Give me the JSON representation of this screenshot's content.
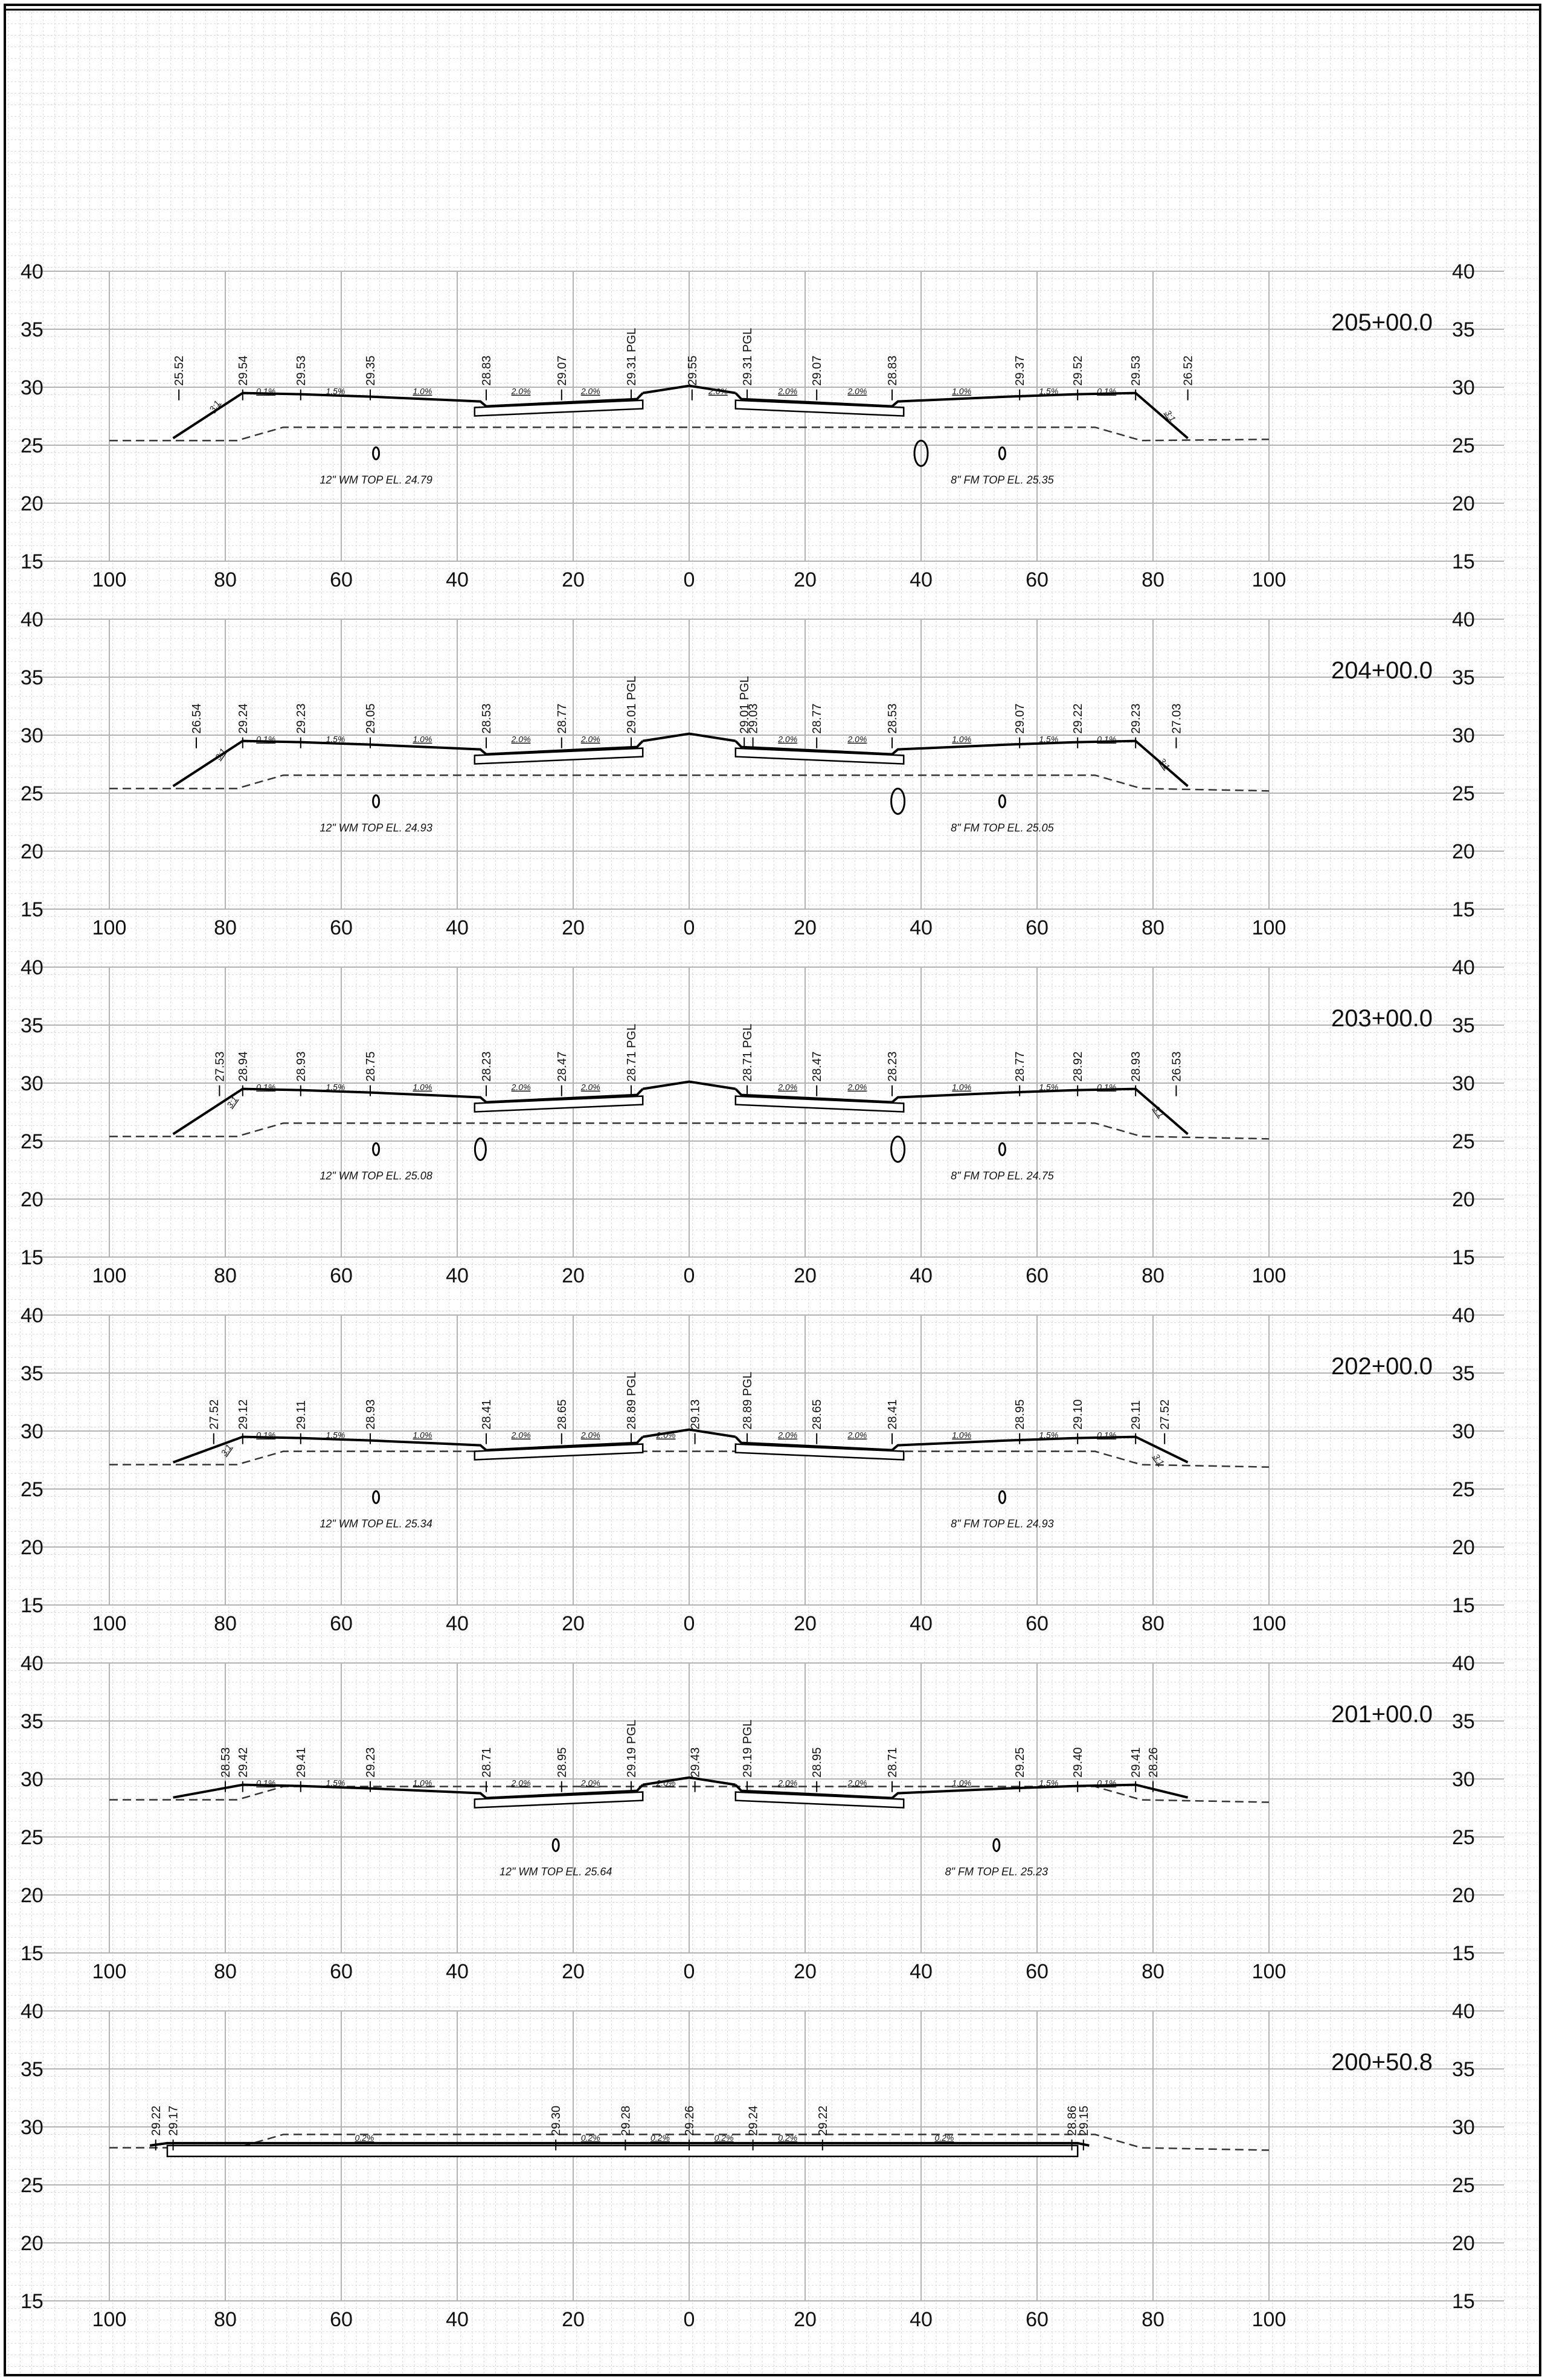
{
  "sheet": {
    "offset_ticks": [
      100,
      80,
      60,
      40,
      20,
      0,
      20,
      40,
      60,
      80,
      100
    ],
    "elevation_ticks": [
      40,
      35,
      30,
      25,
      20,
      15
    ]
  },
  "chart_data": [
    {
      "type": "diagram",
      "station": "205+00.0",
      "elevations": [
        {
          "x": -88,
          "label": "25.52"
        },
        {
          "x": -77,
          "label": "29.54"
        },
        {
          "x": -67,
          "label": "29.53"
        },
        {
          "x": -55,
          "label": "29.35"
        },
        {
          "x": -35,
          "label": "28.83"
        },
        {
          "x": -22,
          "label": "29.07"
        },
        {
          "x": -10,
          "label": "29.31 PGL"
        },
        {
          "x": 0.5,
          "label": "29.55"
        },
        {
          "x": 10,
          "label": "29.31 PGL"
        },
        {
          "x": 22,
          "label": "29.07"
        },
        {
          "x": 35,
          "label": "28.83"
        },
        {
          "x": 57,
          "label": "29.37"
        },
        {
          "x": 67,
          "label": "29.52"
        },
        {
          "x": 77,
          "label": "29.53"
        },
        {
          "x": 86,
          "label": "26.52"
        }
      ],
      "slopes": [
        {
          "x": -73,
          "label": "0.1%"
        },
        {
          "x": -61,
          "label": "1.5%"
        },
        {
          "x": -46,
          "label": "1.0%"
        },
        {
          "x": -29,
          "label": "2.0%"
        },
        {
          "x": -17,
          "label": "2.0%"
        },
        {
          "x": 5,
          "label": "2.0%"
        },
        {
          "x": 17,
          "label": "2.0%"
        },
        {
          "x": 29,
          "label": "2.0%"
        },
        {
          "x": 47,
          "label": "1.0%"
        },
        {
          "x": 62,
          "label": "1.5%"
        },
        {
          "x": 72,
          "label": "0.1%"
        }
      ],
      "side_slopes": [
        {
          "x": -82,
          "label": "3:1"
        },
        {
          "x": 82,
          "label": "3:1"
        }
      ],
      "notes": [
        {
          "x": -54,
          "label": "12\" WM TOP EL. 24.79"
        },
        {
          "x": 54,
          "label": "8\" FM TOP EL. 25.35"
        }
      ]
    },
    {
      "type": "diagram",
      "station": "204+00.0",
      "elevations": [
        {
          "x": -85,
          "label": "26.54"
        },
        {
          "x": -77,
          "label": "29.24"
        },
        {
          "x": -67,
          "label": "29.23"
        },
        {
          "x": -55,
          "label": "29.05"
        },
        {
          "x": -35,
          "label": "28.53"
        },
        {
          "x": -22,
          "label": "28.77"
        },
        {
          "x": -10,
          "label": "29.01 PGL"
        },
        {
          "x": 9.5,
          "label": "29.01 PGL"
        },
        {
          "x": 11,
          "label": "29.03"
        },
        {
          "x": 22,
          "label": "28.77"
        },
        {
          "x": 35,
          "label": "28.53"
        },
        {
          "x": 57,
          "label": "29.07"
        },
        {
          "x": 67,
          "label": "29.22"
        },
        {
          "x": 77,
          "label": "29.23"
        },
        {
          "x": 84,
          "label": "27.03"
        }
      ],
      "slopes": [
        {
          "x": -73,
          "label": "0.1%"
        },
        {
          "x": -61,
          "label": "1.5%"
        },
        {
          "x": -46,
          "label": "1.0%"
        },
        {
          "x": -29,
          "label": "2.0%"
        },
        {
          "x": -17,
          "label": "2.0%"
        },
        {
          "x": 17,
          "label": "2.0%"
        },
        {
          "x": 29,
          "label": "2.0%"
        },
        {
          "x": 47,
          "label": "1.0%"
        },
        {
          "x": 62,
          "label": "1.5%"
        },
        {
          "x": 72,
          "label": "0.1%"
        }
      ],
      "side_slopes": [
        {
          "x": -81,
          "label": "3:1"
        },
        {
          "x": 81,
          "label": "3:1"
        }
      ],
      "notes": [
        {
          "x": -54,
          "label": "12\" WM TOP EL. 24.93"
        },
        {
          "x": 54,
          "label": "8\" FM TOP EL. 25.05"
        }
      ]
    },
    {
      "type": "diagram",
      "station": "203+00.0",
      "elevations": [
        {
          "x": -81,
          "label": "27.53"
        },
        {
          "x": -77,
          "label": "28.94"
        },
        {
          "x": -67,
          "label": "28.93"
        },
        {
          "x": -55,
          "label": "28.75"
        },
        {
          "x": -35,
          "label": "28.23"
        },
        {
          "x": -22,
          "label": "28.47"
        },
        {
          "x": -10,
          "label": "28.71 PGL"
        },
        {
          "x": 10,
          "label": "28.71 PGL"
        },
        {
          "x": 22,
          "label": "28.47"
        },
        {
          "x": 35,
          "label": "28.23"
        },
        {
          "x": 57,
          "label": "28.77"
        },
        {
          "x": 67,
          "label": "28.92"
        },
        {
          "x": 77,
          "label": "28.93"
        },
        {
          "x": 84,
          "label": "26.53"
        }
      ],
      "slopes": [
        {
          "x": -73,
          "label": "0.1%"
        },
        {
          "x": -61,
          "label": "1.5%"
        },
        {
          "x": -46,
          "label": "1.0%"
        },
        {
          "x": -29,
          "label": "2.0%"
        },
        {
          "x": -17,
          "label": "2.0%"
        },
        {
          "x": 17,
          "label": "2.0%"
        },
        {
          "x": 29,
          "label": "2.0%"
        },
        {
          "x": 47,
          "label": "1.0%"
        },
        {
          "x": 62,
          "label": "1.5%"
        },
        {
          "x": 72,
          "label": "0.1%"
        }
      ],
      "side_slopes": [
        {
          "x": -79,
          "label": "3:1"
        },
        {
          "x": 80,
          "label": "3:1"
        }
      ],
      "notes": [
        {
          "x": -54,
          "label": "12\" WM TOP EL. 25.08"
        },
        {
          "x": 54,
          "label": "8\" FM TOP EL. 24.75"
        }
      ]
    },
    {
      "type": "diagram",
      "station": "202+00.0",
      "elevations": [
        {
          "x": -82,
          "label": "27.52"
        },
        {
          "x": -77,
          "label": "29.12"
        },
        {
          "x": -67,
          "label": "29.11"
        },
        {
          "x": -55,
          "label": "28.93"
        },
        {
          "x": -35,
          "label": "28.41"
        },
        {
          "x": -22,
          "label": "28.65"
        },
        {
          "x": -10,
          "label": "28.89 PGL"
        },
        {
          "x": 1,
          "label": "29.13"
        },
        {
          "x": 10,
          "label": "28.89 PGL"
        },
        {
          "x": 22,
          "label": "28.65"
        },
        {
          "x": 35,
          "label": "28.41"
        },
        {
          "x": 57,
          "label": "28.95"
        },
        {
          "x": 67,
          "label": "29.10"
        },
        {
          "x": 77,
          "label": "29.11"
        },
        {
          "x": 82,
          "label": "27.52"
        }
      ],
      "slopes": [
        {
          "x": -73,
          "label": "0.1%"
        },
        {
          "x": -61,
          "label": "1.5%"
        },
        {
          "x": -46,
          "label": "1.0%"
        },
        {
          "x": -29,
          "label": "2.0%"
        },
        {
          "x": -17,
          "label": "2.0%"
        },
        {
          "x": -4,
          "label": "2.0%"
        },
        {
          "x": 17,
          "label": "2.0%"
        },
        {
          "x": 29,
          "label": "2.0%"
        },
        {
          "x": 47,
          "label": "1.0%"
        },
        {
          "x": 62,
          "label": "1.5%"
        },
        {
          "x": 72,
          "label": "0.1%"
        }
      ],
      "side_slopes": [
        {
          "x": -80,
          "label": "3:1"
        },
        {
          "x": 80,
          "label": "3:1"
        }
      ],
      "notes": [
        {
          "x": -54,
          "label": "12\" WM TOP EL. 25.34"
        },
        {
          "x": 54,
          "label": "8\" FM TOP EL. 24.93"
        }
      ]
    },
    {
      "type": "diagram",
      "station": "201+00.0",
      "elevations": [
        {
          "x": -80,
          "label": "28.53"
        },
        {
          "x": -77,
          "label": "29.42"
        },
        {
          "x": -67,
          "label": "29.41"
        },
        {
          "x": -55,
          "label": "29.23"
        },
        {
          "x": -35,
          "label": "28.71"
        },
        {
          "x": -22,
          "label": "28.95"
        },
        {
          "x": -10,
          "label": "29.19 PGL"
        },
        {
          "x": 1,
          "label": "29.43"
        },
        {
          "x": 10,
          "label": "29.19 PGL"
        },
        {
          "x": 22,
          "label": "28.95"
        },
        {
          "x": 35,
          "label": "28.71"
        },
        {
          "x": 57,
          "label": "29.25"
        },
        {
          "x": 67,
          "label": "29.40"
        },
        {
          "x": 77,
          "label": "29.41"
        },
        {
          "x": 80,
          "label": "28.26"
        }
      ],
      "slopes": [
        {
          "x": -73,
          "label": "0.1%"
        },
        {
          "x": -61,
          "label": "1.5%"
        },
        {
          "x": -46,
          "label": "1.0%"
        },
        {
          "x": -29,
          "label": "2.0%"
        },
        {
          "x": -17,
          "label": "2.0%"
        },
        {
          "x": -4,
          "label": "2.0%"
        },
        {
          "x": 17,
          "label": "2.0%"
        },
        {
          "x": 29,
          "label": "2.0%"
        },
        {
          "x": 47,
          "label": "1.0%"
        },
        {
          "x": 62,
          "label": "1.5%"
        },
        {
          "x": 72,
          "label": "0.1%"
        }
      ],
      "side_slopes": [],
      "notes": [
        {
          "x": -23,
          "label": "12\" WM TOP EL. 25.64"
        },
        {
          "x": 53,
          "label": "8\" FM TOP EL. 25.23"
        }
      ]
    },
    {
      "type": "diagram",
      "station": "200+50.8",
      "elevations": [
        {
          "x": -92,
          "label": "29.22"
        },
        {
          "x": -89,
          "label": "29.17"
        },
        {
          "x": -23,
          "label": "29.30"
        },
        {
          "x": -11,
          "label": "29.28"
        },
        {
          "x": 0,
          "label": "29.26"
        },
        {
          "x": 11,
          "label": "29.24"
        },
        {
          "x": 23,
          "label": "29.22"
        },
        {
          "x": 66,
          "label": "28.86"
        },
        {
          "x": 68,
          "label": "29.15"
        }
      ],
      "slopes": [
        {
          "x": -56,
          "label": "0.2%"
        },
        {
          "x": -17,
          "label": "0.2%"
        },
        {
          "x": -5,
          "label": "0.2%"
        },
        {
          "x": 6,
          "label": "0.2%"
        },
        {
          "x": 17,
          "label": "0.2%"
        },
        {
          "x": 44,
          "label": "0.2%"
        }
      ],
      "side_slopes": [],
      "notes": []
    }
  ]
}
